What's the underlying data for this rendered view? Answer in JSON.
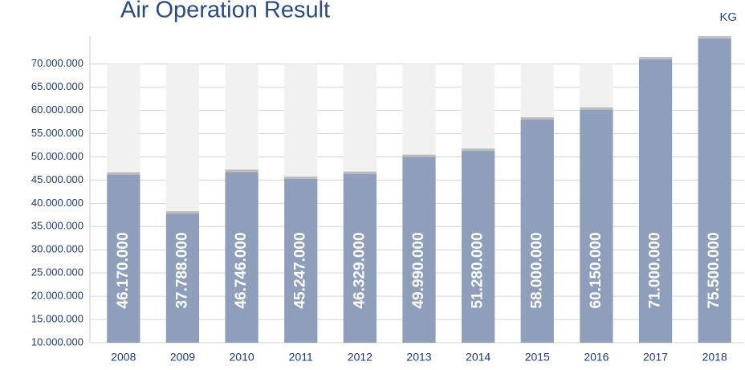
{
  "chart_data": {
    "type": "bar",
    "title": "Air Operation Result",
    "unit": "KG",
    "categories": [
      "2008",
      "2009",
      "2010",
      "2011",
      "2012",
      "2013",
      "2014",
      "2015",
      "2016",
      "2017",
      "2018"
    ],
    "values": [
      46170000,
      37788000,
      46746000,
      45247000,
      46329000,
      49990000,
      51280000,
      58000000,
      60150000,
      71000000,
      75500000
    ],
    "value_labels": [
      "46.170.000",
      "37.788.000",
      "46.746.000",
      "45.247.000",
      "46.329.000",
      "49.990.000",
      "51.280.000",
      "58.000.000",
      "60.150.000",
      "71.000.000",
      "75.500.000"
    ],
    "color": "#8f9fbb",
    "ylim": [
      10000000,
      76000000
    ],
    "yticks": [
      {
        "value": 10000000,
        "label": "10.000.000"
      },
      {
        "value": 15000000,
        "label": "15.000.000"
      },
      {
        "value": 20000000,
        "label": "20.000.000"
      },
      {
        "value": 25000000,
        "label": "25.000.000"
      },
      {
        "value": 30000000,
        "label": "30.000.000"
      },
      {
        "value": 35000000,
        "label": "35.000.000"
      },
      {
        "value": 40000000,
        "label": "40.000.000"
      },
      {
        "value": 45000000,
        "label": "45.000.000"
      },
      {
        "value": 50000000,
        "label": "50.000.000"
      },
      {
        "value": 55000000,
        "label": "55.000.000"
      },
      {
        "value": 60000000,
        "label": "60.000.000"
      },
      {
        "value": 65000000,
        "label": "65.000.000"
      },
      {
        "value": 70000000,
        "label": "70.000.000"
      }
    ],
    "grid": true
  }
}
